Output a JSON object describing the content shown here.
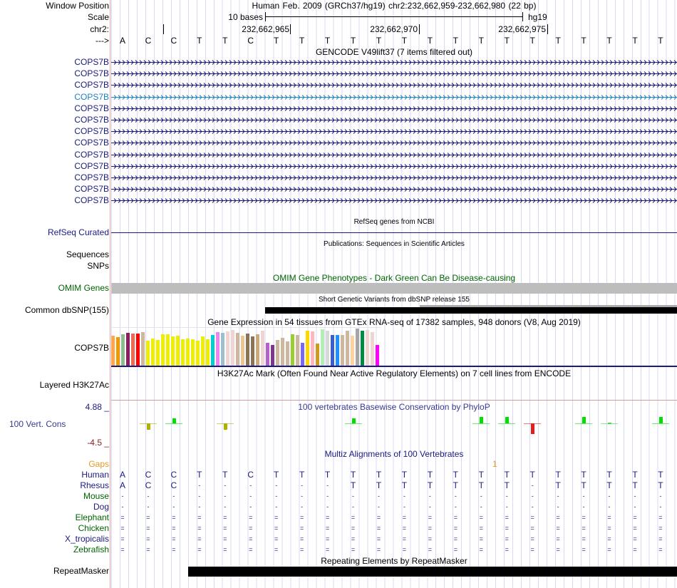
{
  "header": {
    "window_position_label": "Window Position",
    "window_position_value": "Human Feb. 2009 (GRCh37/hg19)   chr2:232,662,959-232,662,980 (22 bp)",
    "scale_label": "Scale",
    "scale_text": "10 bases",
    "scale_assembly": "hg19",
    "chrom_label": "chr2:",
    "ticks": [
      "232,662,965",
      "232,662,970",
      "232,662,975"
    ],
    "strand_label": "--->",
    "bases": [
      "A",
      "C",
      "C",
      "T",
      "T",
      "C",
      "T",
      "T",
      "T",
      "T",
      "T",
      "T",
      "T",
      "T",
      "T",
      "T",
      "T",
      "T",
      "T",
      "T",
      "T",
      "T"
    ]
  },
  "gencode": {
    "title": "GENCODE V49lift37 (7 items filtered out)",
    "genes": [
      "COPS7B",
      "COPS7B",
      "COPS7B",
      "COPS7B",
      "COPS7B",
      "COPS7B",
      "COPS7B",
      "COPS7B",
      "COPS7B",
      "COPS7B",
      "COPS7B",
      "COPS7B",
      "COPS7B"
    ],
    "highlight_index": 3,
    "color": "#1a1a80",
    "highlight_color": "#1e80c0"
  },
  "refseq": {
    "title": "RefSeq genes from NCBI",
    "label": "RefSeq Curated"
  },
  "publications": {
    "title": "Publications: Sequences in Scientific Articles",
    "label_sequences": "Sequences",
    "label_snps": "SNPs"
  },
  "omim": {
    "title": "OMIM Gene Phenotypes - Dark Green Can Be Disease-causing",
    "label": "OMIM Genes",
    "color": "#006400"
  },
  "dbsnp": {
    "title": "Short Genetic Variants from dbSNP release 155",
    "label": "Common dbSNP(155)"
  },
  "gtex": {
    "title": "Gene Expression in 54 tissues from GTEx RNA-seq of 17382 samples, 948 donors (V8, Aug 2019)",
    "label": "COPS7B",
    "values": [
      42,
      40,
      44,
      46,
      45,
      45,
      47,
      35,
      38,
      36,
      44,
      44,
      41,
      42,
      37,
      38,
      37,
      35,
      41,
      37,
      43,
      47,
      46,
      48,
      50,
      46,
      42,
      45,
      41,
      44,
      49,
      32,
      29,
      36,
      39,
      34,
      44,
      43,
      32,
      49,
      48,
      31,
      51,
      49,
      43,
      43,
      43,
      49,
      42,
      52,
      49,
      50,
      47,
      29
    ],
    "colors": [
      "#FFA54F",
      "#EE9A00",
      "#8FBC8F",
      "#8B1C62",
      "#EE6A50",
      "#FF0000",
      "#CDB79E",
      "#EEEE00",
      "#EEEE00",
      "#EEEE00",
      "#EEEE00",
      "#EEEE00",
      "#EEEE00",
      "#EEEE00",
      "#EEEE00",
      "#EEEE00",
      "#EEEE00",
      "#EEEE00",
      "#EEEE00",
      "#EEEE00",
      "#00CED1",
      "#EE82EE",
      "#9AC0CD",
      "#EED5D2",
      "#EED5D2",
      "#CDB79E",
      "#EEC591",
      "#8B7355",
      "#8B7355",
      "#CDAA7D",
      "#EED5D2",
      "#B460C8",
      "#7A378B",
      "#CDB79E",
      "#CDB79E",
      "#CDB79E",
      "#9ACD32",
      "#CDB79E",
      "#7B68EE",
      "#FFD700",
      "#FFB6C1",
      "#CD9B1D",
      "#B4EEB4",
      "#D9D9D9",
      "#3A5FCD",
      "#1E90FF",
      "#CDB79E",
      "#CDB79E",
      "#FFD39B",
      "#A6A6A6",
      "#008B45",
      "#EED5D2",
      "#EED5D2",
      "#FF00FF"
    ]
  },
  "h3k27ac": {
    "title": "H3K27Ac Mark (Often Found Near Active Regulatory Elements) on 7 cell lines from ENCODE",
    "label": "Layered H3K27Ac"
  },
  "phylop": {
    "title": "100 vertebrates Basewise Conservation by PhyloP",
    "label": "100 Vert. Cons",
    "ymax_label": "4.88 _",
    "ymin_label": "-4.5 _",
    "ylim": [
      -4.5,
      4.88
    ],
    "values": [
      null,
      -0.3,
      0.5,
      null,
      -0.3,
      null,
      null,
      null,
      null,
      0.5,
      null,
      null,
      null,
      null,
      0.6,
      0.6,
      -0.6,
      null,
      0.6,
      0.2,
      null,
      0.6
    ]
  },
  "multiz": {
    "title": "Multiz Alignments of 100 Vertebrates",
    "gaps_label": "Gaps",
    "gap_mark": "1",
    "species": [
      {
        "name": "Human",
        "seq": [
          "A",
          "C",
          "C",
          "T",
          "T",
          "C",
          "T",
          "T",
          "T",
          "T",
          "T",
          "T",
          "T",
          "T",
          "T",
          "T",
          "T",
          "T",
          "T",
          "T",
          "T",
          "T"
        ],
        "color": "#1a1a80"
      },
      {
        "name": "Rhesus",
        "seq": [
          "A",
          "C",
          "C",
          "-",
          "-",
          "-",
          "-",
          "-",
          "-",
          "T",
          "T",
          "T",
          "T",
          "T",
          "T",
          "T",
          "-",
          "T",
          "T",
          "T",
          "T",
          "T"
        ],
        "color": "#1a1a80"
      },
      {
        "name": "Mouse",
        "seq": [
          "-",
          "-",
          "-",
          "-",
          "-",
          "-",
          "-",
          "-",
          "-",
          "-",
          "-",
          "-",
          "-",
          "-",
          "-",
          "-",
          "-",
          "-",
          "-",
          "-",
          "-",
          "-"
        ],
        "color": "#006400"
      },
      {
        "name": "Dog",
        "seq": [
          "-",
          "-",
          "-",
          "-",
          "-",
          "-",
          "-",
          "-",
          "-",
          "-",
          "-",
          "-",
          "-",
          "-",
          "-",
          "-",
          "-",
          "-",
          "-",
          "-",
          "-",
          "-"
        ],
        "color": "#1a1a80"
      },
      {
        "name": "Elephant",
        "seq": [
          "=",
          "=",
          "=",
          "=",
          "=",
          "=",
          "=",
          "=",
          "=",
          "=",
          "=",
          "=",
          "=",
          "=",
          "=",
          "=",
          "=",
          "=",
          "=",
          "=",
          "=",
          "="
        ],
        "color": "#006400"
      },
      {
        "name": "Chicken",
        "seq": [
          "=",
          "=",
          "=",
          "=",
          "=",
          "=",
          "=",
          "=",
          "=",
          "=",
          "=",
          "=",
          "=",
          "=",
          "=",
          "=",
          "=",
          "=",
          "=",
          "=",
          "=",
          "="
        ],
        "color": "#006400"
      },
      {
        "name": "X_tropicalis",
        "seq": [
          "=",
          "=",
          "=",
          "=",
          "=",
          "=",
          "=",
          "=",
          "=",
          "=",
          "=",
          "=",
          "=",
          "=",
          "=",
          "=",
          "=",
          "=",
          "=",
          "=",
          "=",
          "="
        ],
        "color": "#1a1a80"
      },
      {
        "name": "Zebrafish",
        "seq": [
          "=",
          "=",
          "=",
          "=",
          "=",
          "=",
          "=",
          "=",
          "=",
          "=",
          "=",
          "=",
          "=",
          "=",
          "=",
          "=",
          "=",
          "=",
          "=",
          "=",
          "=",
          "="
        ],
        "color": "#006400"
      }
    ]
  },
  "repeatmasker": {
    "title": "Repeating Elements by RepeatMasker",
    "label": "RepeatMasker"
  }
}
